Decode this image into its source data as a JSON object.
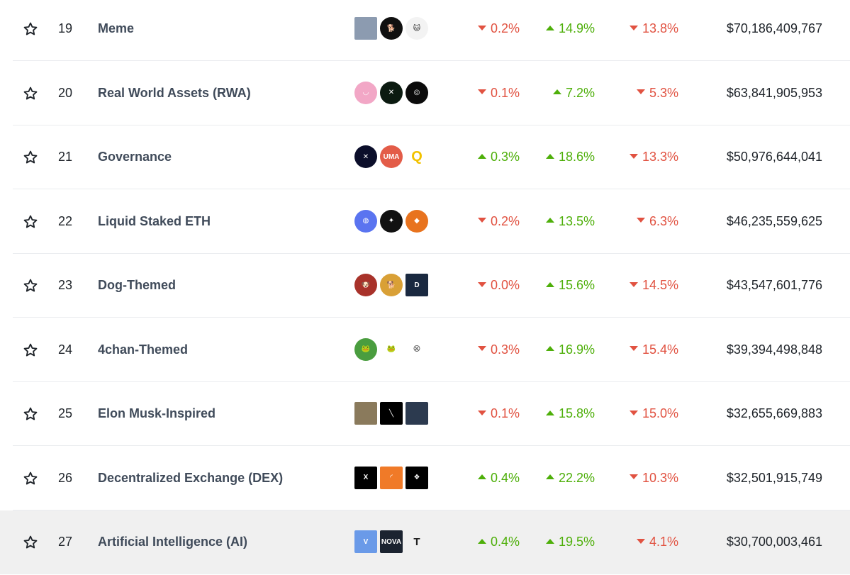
{
  "rows": [
    {
      "rank": "19",
      "name": "Meme",
      "h1": "0.2%",
      "h1_dir": "down",
      "h24": "14.9%",
      "h24_dir": "up",
      "d7": "13.8%",
      "d7_dir": "down",
      "mcap": "$70,186,409,767",
      "coins": [
        {
          "icon": "grey-tower-coin-icon",
          "bg": "#8c9bb0",
          "sq": true,
          "t": ""
        },
        {
          "icon": "shiba-coin-icon",
          "bg": "#101010",
          "t": "🐕"
        },
        {
          "icon": "cat-flag-coin-icon",
          "bg": "#f3f3f3",
          "t": "🐱"
        }
      ]
    },
    {
      "rank": "20",
      "name": "Real World Assets (RWA)",
      "h1": "0.1%",
      "h1_dir": "down",
      "h24": "7.2%",
      "h24_dir": "up",
      "d7": "5.3%",
      "d7_dir": "down",
      "mcap": "$63,841,905,953",
      "coins": [
        {
          "icon": "pink-smile-coin-icon",
          "bg": "#f2a7c6",
          "t": "◡"
        },
        {
          "icon": "green-x-coin-icon",
          "bg": "#0b1a10",
          "t": "✕"
        },
        {
          "icon": "green-ring-coin-icon",
          "bg": "#0b0b0b",
          "t": "◎"
        }
      ]
    },
    {
      "rank": "21",
      "name": "Governance",
      "h1": "0.3%",
      "h1_dir": "up",
      "h24": "18.6%",
      "h24_dir": "up",
      "d7": "13.3%",
      "d7_dir": "down",
      "mcap": "$50,976,644,041",
      "coins": [
        {
          "icon": "synthetix-coin-icon",
          "bg": "#0b0e2a",
          "t": "✕"
        },
        {
          "icon": "uma-coin-icon",
          "bg": "#e35c48",
          "t": "UMA"
        },
        {
          "icon": "yellow-q-coin-icon",
          "bg": "#ffffff",
          "t": "Q"
        }
      ]
    },
    {
      "rank": "22",
      "name": "Liquid Staked ETH",
      "h1": "0.2%",
      "h1_dir": "down",
      "h24": "13.5%",
      "h24_dir": "up",
      "d7": "6.3%",
      "d7_dir": "down",
      "mcap": "$46,235,559,625",
      "coins": [
        {
          "icon": "blue-ring-coin-icon",
          "bg": "#5a74f0",
          "t": "◍"
        },
        {
          "icon": "wings-coin-icon",
          "bg": "#111111",
          "t": "✦"
        },
        {
          "icon": "eth-orange-coin-icon",
          "bg": "#e8731e",
          "t": "◆"
        }
      ]
    },
    {
      "rank": "23",
      "name": "Dog-Themed",
      "h1": "0.0%",
      "h1_dir": "down",
      "h24": "15.6%",
      "h24_dir": "up",
      "d7": "14.5%",
      "d7_dir": "down",
      "mcap": "$43,547,601,776",
      "coins": [
        {
          "icon": "shiba-red-coin-icon",
          "bg": "#a8322a",
          "t": "🐶"
        },
        {
          "icon": "doge-coin-icon",
          "bg": "#d9a036",
          "t": "🐕"
        },
        {
          "icon": "dogecoin-sq-coin-icon",
          "bg": "#1a2940",
          "sq": true,
          "t": "D"
        }
      ]
    },
    {
      "rank": "24",
      "name": "4chan-Themed",
      "h1": "0.3%",
      "h1_dir": "down",
      "h24": "16.9%",
      "h24_dir": "up",
      "d7": "15.4%",
      "d7_dir": "down",
      "mcap": "$39,394,498,848",
      "coins": [
        {
          "icon": "pepe-coin-icon",
          "bg": "#4a9d3f",
          "t": "🐸"
        },
        {
          "icon": "pepe-side-coin-icon",
          "bg": "#ffffff",
          "t": "🐸"
        },
        {
          "icon": "wojak-coin-icon",
          "bg": "#ffffff",
          "t": "😫"
        }
      ]
    },
    {
      "rank": "25",
      "name": "Elon Musk-Inspired",
      "h1": "0.1%",
      "h1_dir": "down",
      "h24": "15.8%",
      "h24_dir": "up",
      "d7": "15.0%",
      "d7_dir": "down",
      "mcap": "$32,655,669,883",
      "coins": [
        {
          "icon": "dog-photo-coin-icon",
          "bg": "#8a7a5c",
          "sq": true,
          "t": ""
        },
        {
          "icon": "x-logo-coin-icon",
          "bg": "#000000",
          "sq": true,
          "t": "╲"
        },
        {
          "icon": "portrait-coin-icon",
          "bg": "#2c3a4f",
          "sq": true,
          "t": ""
        }
      ]
    },
    {
      "rank": "26",
      "name": "Decentralized Exchange (DEX)",
      "h1": "0.4%",
      "h1_dir": "up",
      "h24": "22.2%",
      "h24_dir": "up",
      "d7": "10.3%",
      "d7_dir": "down",
      "mcap": "$32,501,915,749",
      "coins": [
        {
          "icon": "x-black-coin-icon",
          "bg": "#000000",
          "sq": true,
          "t": "X"
        },
        {
          "icon": "orange-swirl-coin-icon",
          "bg": "#f07a28",
          "sq": true,
          "t": "◜"
        },
        {
          "icon": "black-knot-coin-icon",
          "bg": "#000000",
          "sq": true,
          "t": "❖"
        }
      ]
    },
    {
      "rank": "27",
      "name": "Artificial Intelligence (AI)",
      "h1": "0.4%",
      "h1_dir": "up",
      "h24": "19.5%",
      "h24_dir": "up",
      "d7": "4.1%",
      "d7_dir": "down",
      "mcap": "$30,700,003,461",
      "coins": [
        {
          "icon": "blue-v-coin-icon",
          "bg": "#6a9ae8",
          "sq": true,
          "t": "V"
        },
        {
          "icon": "nova-coin-icon",
          "bg": "#1b2330",
          "sq": true,
          "t": "NOVA"
        },
        {
          "icon": "t-letter-coin-icon",
          "bg": "transparent",
          "t": "T",
          "none": true
        }
      ]
    }
  ],
  "highlight_rank": "27",
  "colors": {
    "up": "#4eaf0a",
    "down": "#e15241",
    "text": "#1e2329",
    "name": "#404b5a"
  }
}
